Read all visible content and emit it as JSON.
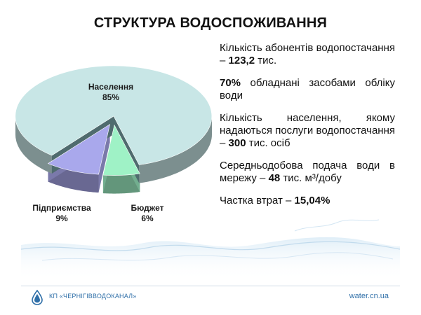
{
  "header": {
    "title": "СТРУКТУРА ВОДОСПОЖИВАННЯ"
  },
  "chart_data": {
    "type": "pie",
    "title": "СТРУКТУРА ВОДОСПОЖИВАННЯ",
    "slices": [
      {
        "name": "Населення",
        "value": 85,
        "label": "85%",
        "color": "#c8e6e6"
      },
      {
        "name": "Бюджет",
        "value": 6,
        "label": "6%",
        "color": "#9ff2c6"
      },
      {
        "name": "Підприємства",
        "value": 9,
        "label": "9%",
        "color": "#a9a8ec"
      }
    ]
  },
  "facts": [
    {
      "pre": "Кількість абонентів водопостачання – ",
      "bold": "123,2",
      "post": " тис."
    },
    {
      "pre": "",
      "bold": "70%",
      "post": " обладнані засобами обліку води"
    },
    {
      "pre": "Кількість населення, якому надаються послуги водопостачання – ",
      "bold": "300",
      "post": " тис. осіб"
    },
    {
      "pre": "Середньодобова подача води в мережу – ",
      "bold": "48",
      "post": " тис. м³/добу"
    },
    {
      "pre": "Частка втрат – ",
      "bold": "15,04%",
      "post": ""
    }
  ],
  "footer": {
    "company": "КП «ЧЕРНІГІВВОДОКАНАЛ»",
    "website": "water.cn.ua",
    "logo_icon": "water-drop-icon",
    "accent": "#2f6fa8"
  }
}
